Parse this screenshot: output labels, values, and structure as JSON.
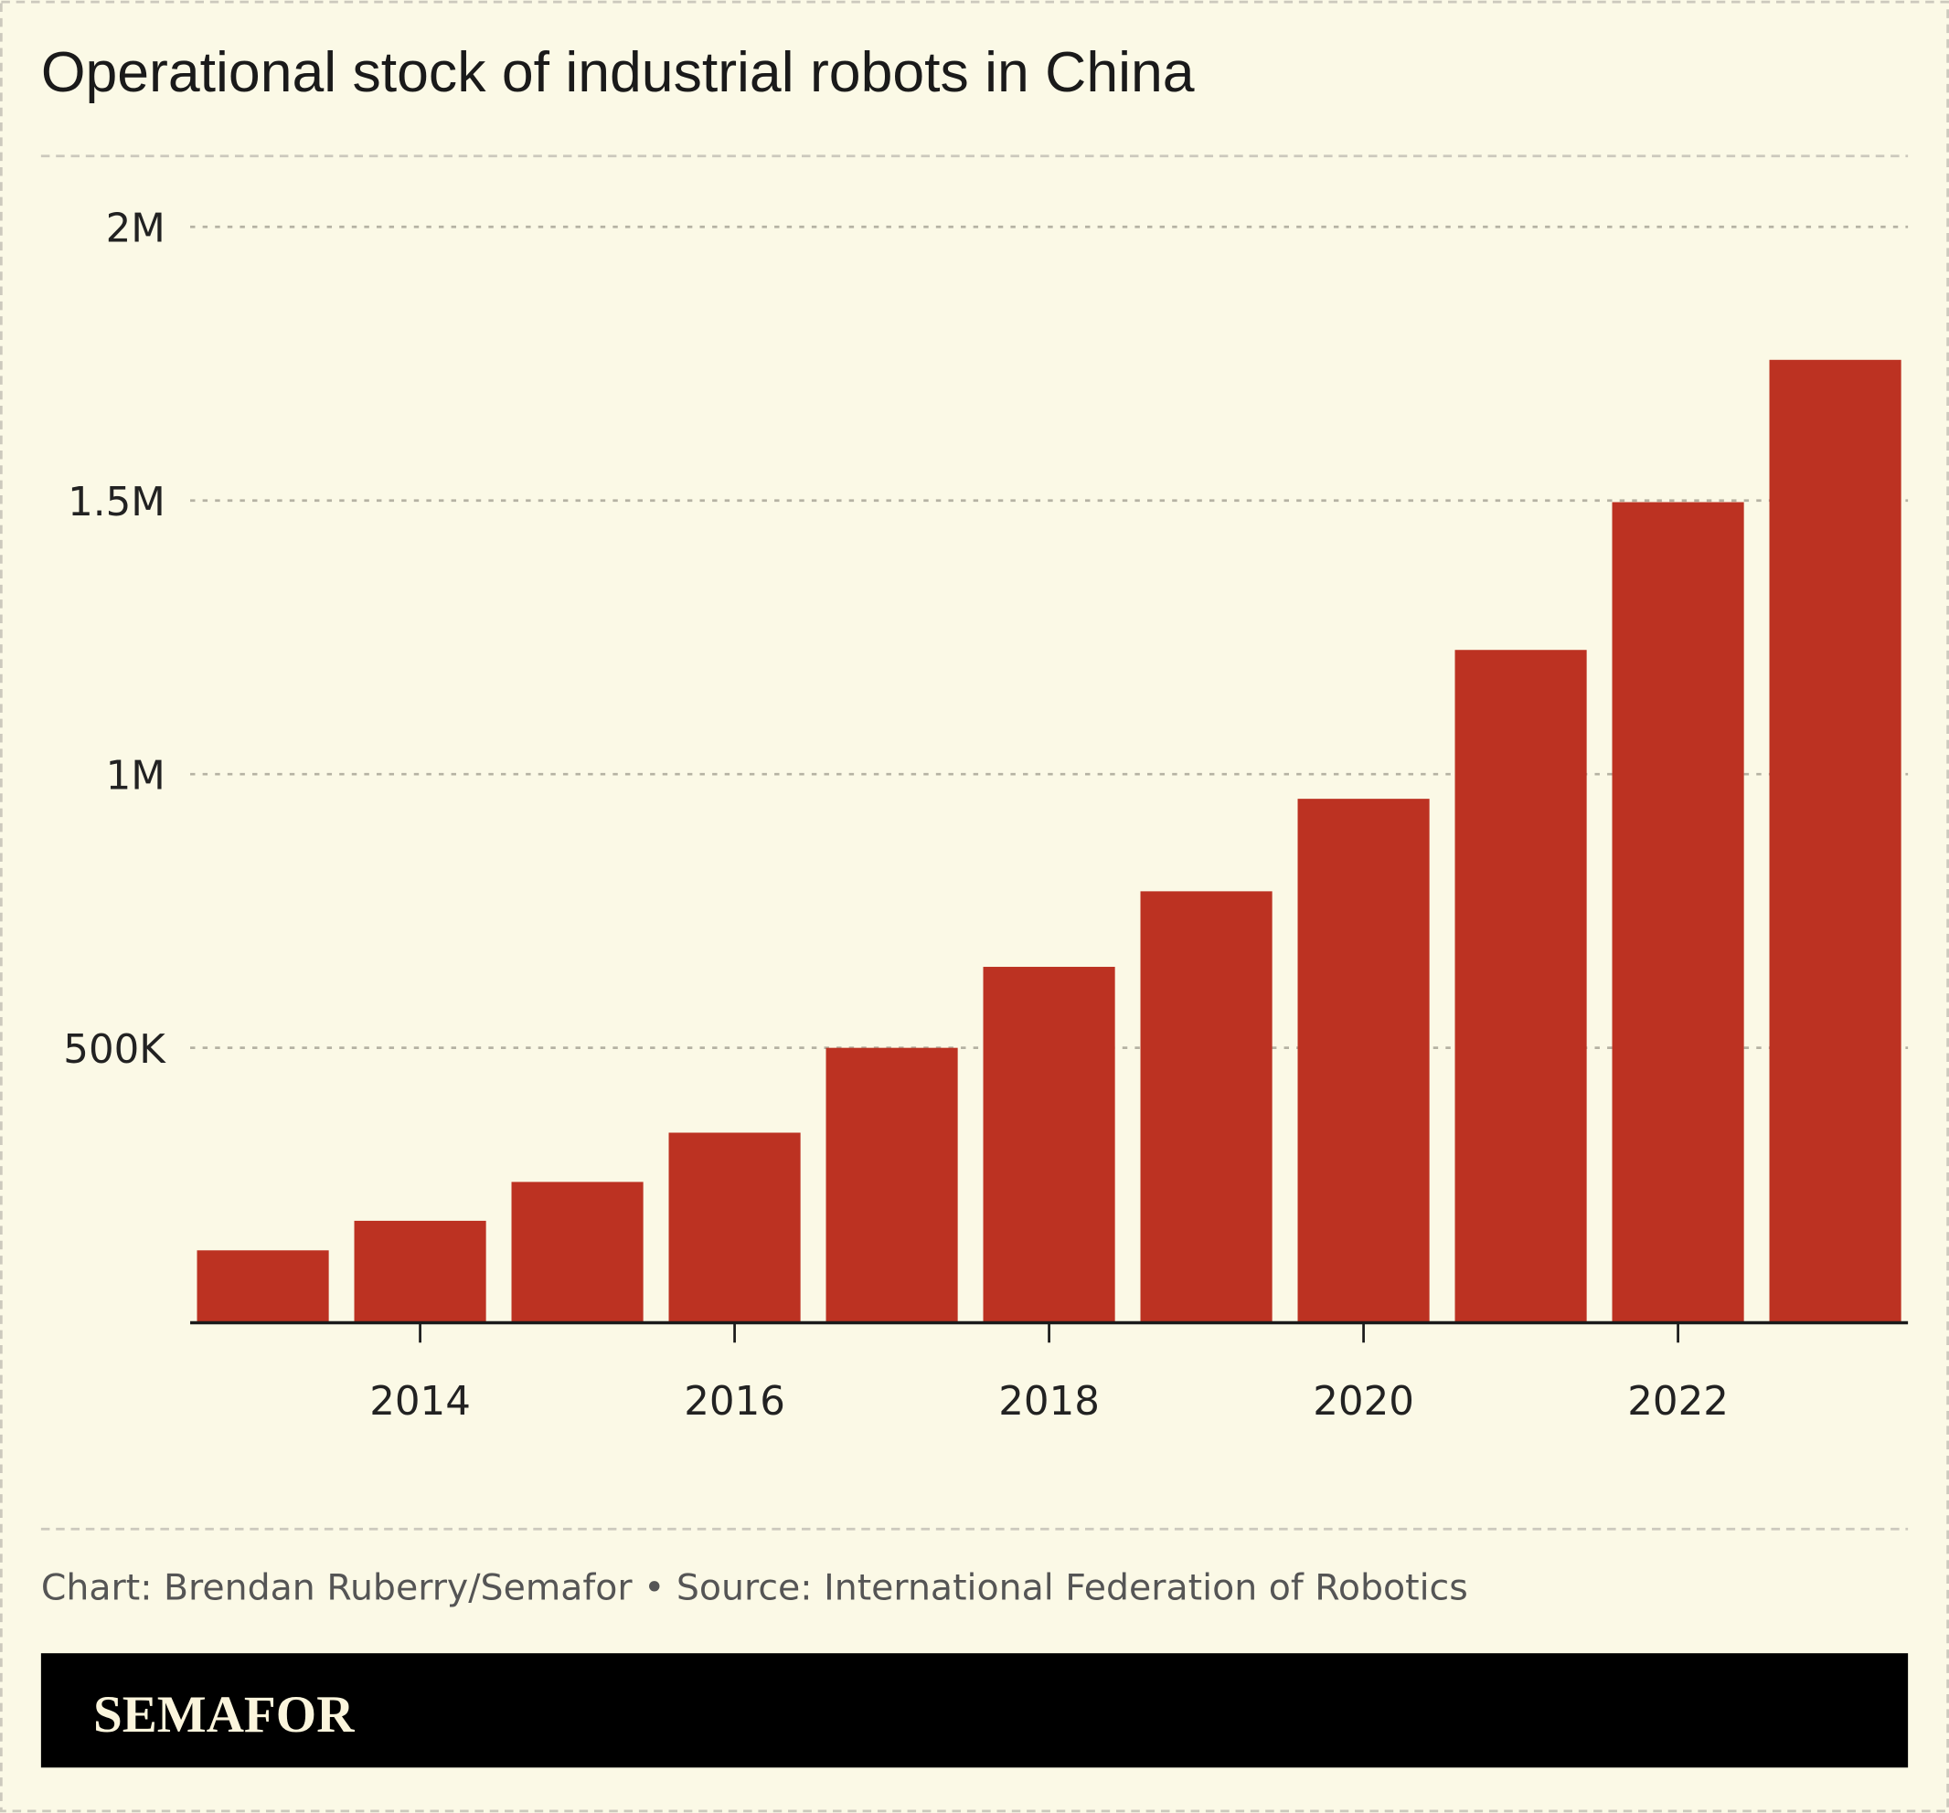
{
  "chart_data": {
    "type": "bar",
    "title": "Operational stock of industrial robots in China",
    "xlabel": "",
    "ylabel": "",
    "categories": [
      2013,
      2014,
      2015,
      2016,
      2017,
      2018,
      2019,
      2020,
      2021,
      2022,
      2023
    ],
    "values": [
      130000,
      184000,
      255000,
      345000,
      500000,
      648000,
      786000,
      955000,
      1227000,
      1497000,
      1757000
    ],
    "ylim": [
      0,
      2000000
    ],
    "y_ticks": [
      {
        "value": 500000,
        "label": "500K"
      },
      {
        "value": 1000000,
        "label": "1M"
      },
      {
        "value": 1500000,
        "label": "1.5M"
      },
      {
        "value": 2000000,
        "label": "2M"
      }
    ],
    "x_ticks": [
      {
        "value": 2014,
        "label": "2014"
      },
      {
        "value": 2016,
        "label": "2016"
      },
      {
        "value": 2018,
        "label": "2018"
      },
      {
        "value": 2020,
        "label": "2020"
      },
      {
        "value": 2022,
        "label": "2022"
      }
    ],
    "grid": true,
    "bar_color": "#bc3222",
    "background": "#fbf9e6"
  },
  "footer": {
    "source": "Chart: Brendan Ruberry/Semafor • Source: International Federation of Robotics",
    "logo": "SEMAFOR"
  }
}
